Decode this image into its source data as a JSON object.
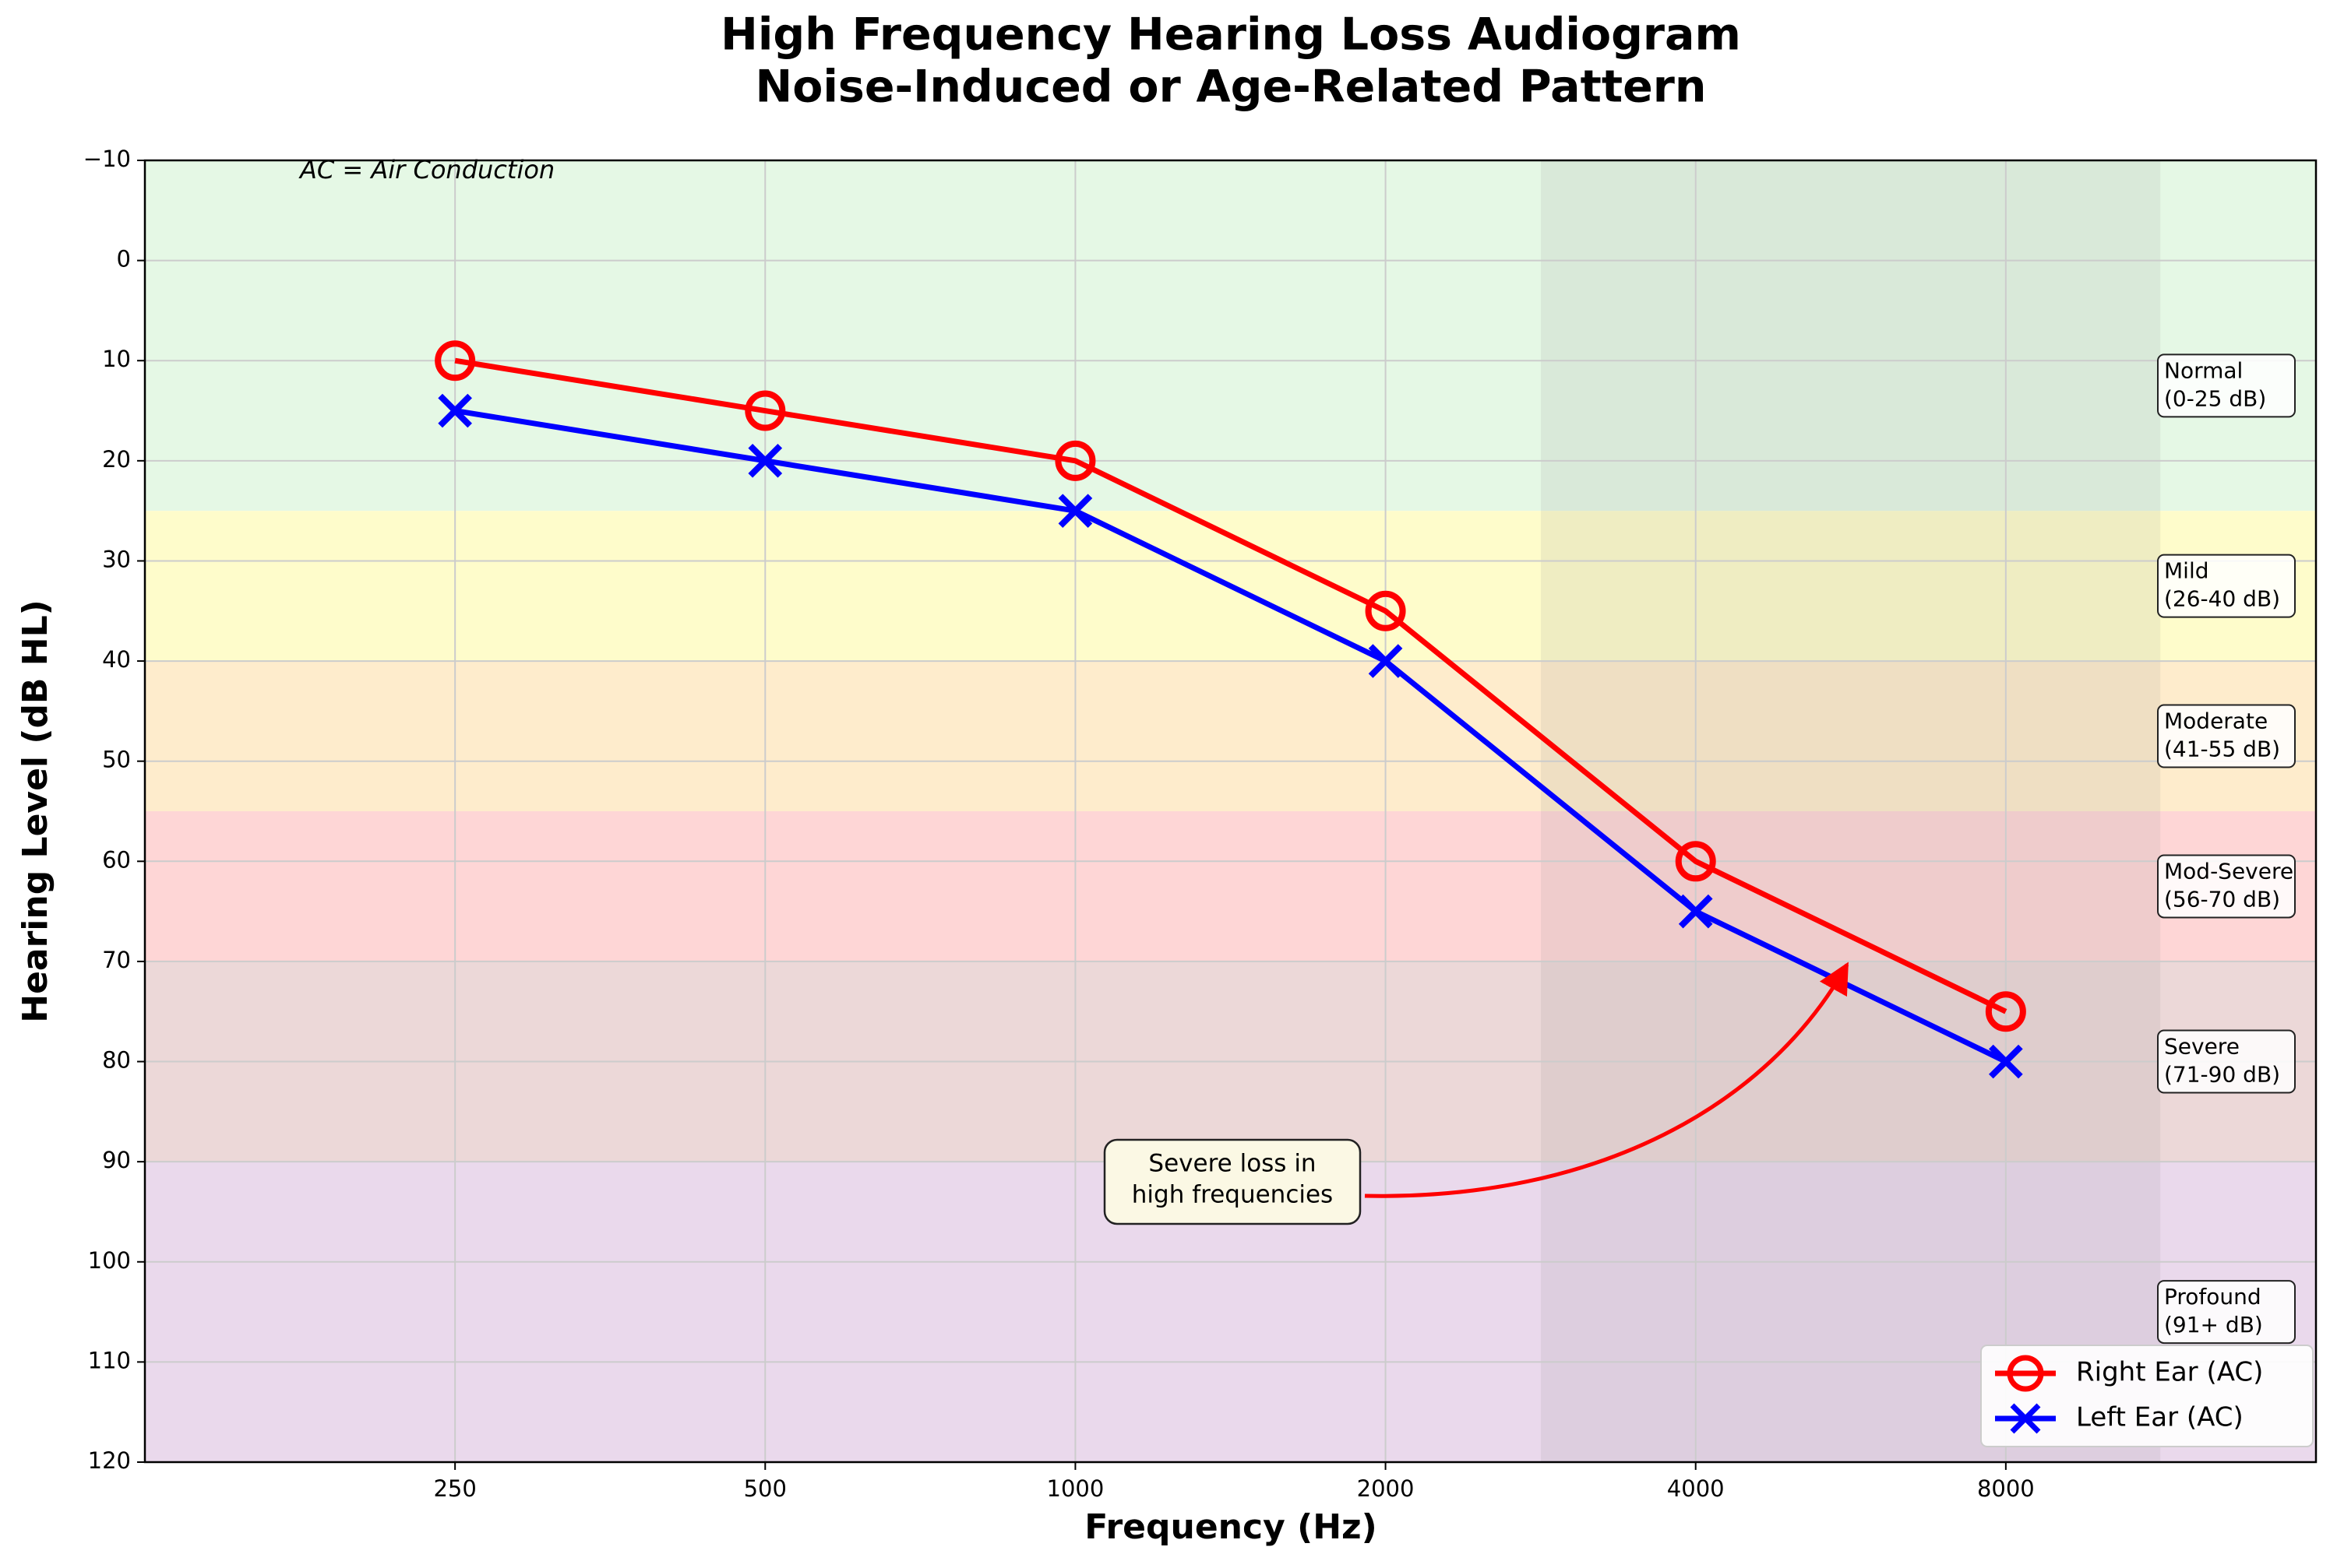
{
  "chart_data": {
    "type": "line",
    "title": "High Frequency Hearing Loss Audiogram",
    "subtitle": "Noise-Induced or Age-Related Pattern",
    "xlabel": "Frequency (Hz)",
    "ylabel": "Hearing Level (dB HL)",
    "x": [
      250,
      500,
      1000,
      2000,
      4000,
      8000
    ],
    "xscale": "log2",
    "xlim": [
      125,
      16000
    ],
    "xticks": [
      250,
      500,
      1000,
      2000,
      4000,
      8000
    ],
    "ylim": [
      -10,
      120
    ],
    "y_inverted": true,
    "yticks": [
      {
        "value": -10,
        "label": "−10"
      },
      0,
      10,
      20,
      30,
      40,
      50,
      60,
      70,
      80,
      90,
      100,
      110,
      120
    ],
    "grid": true,
    "series": [
      {
        "name": "Right Ear (AC)",
        "color": "#ff0000",
        "marker": "o",
        "values": [
          10,
          15,
          20,
          35,
          60,
          75
        ]
      },
      {
        "name": "Left Ear (AC)",
        "color": "#0000ff",
        "marker": "x",
        "values": [
          15,
          20,
          25,
          40,
          65,
          80
        ]
      }
    ],
    "bands": [
      {
        "from": -10,
        "to": 25,
        "color": "#e5f8e5",
        "label": [
          "Normal",
          "(0-25 dB)"
        ]
      },
      {
        "from": 25,
        "to": 40,
        "color": "#fefccb",
        "label": [
          "Mild",
          "(26-40 dB)"
        ]
      },
      {
        "from": 40,
        "to": 55,
        "color": "#feeccc",
        "label": [
          "Moderate",
          "(41-55 dB)"
        ]
      },
      {
        "from": 55,
        "to": 70,
        "color": "#fed6d6",
        "label": [
          "Mod-Severe",
          "(56-70 dB)"
        ]
      },
      {
        "from": 70,
        "to": 90,
        "color": "#ecd8d8",
        "label": [
          "Severe",
          "(71-90 dB)"
        ]
      },
      {
        "from": 90,
        "to": 120,
        "color": "#ead9ec",
        "label": [
          "Profound",
          "(91+ dB)"
        ]
      }
    ],
    "highlight": {
      "from": 2830,
      "to": 11300,
      "color": "#808080",
      "opacity": 0.12
    },
    "note": "AC = Air Conduction",
    "annotation": [
      "Severe loss in",
      "high frequencies"
    ],
    "legend": "lower right"
  }
}
